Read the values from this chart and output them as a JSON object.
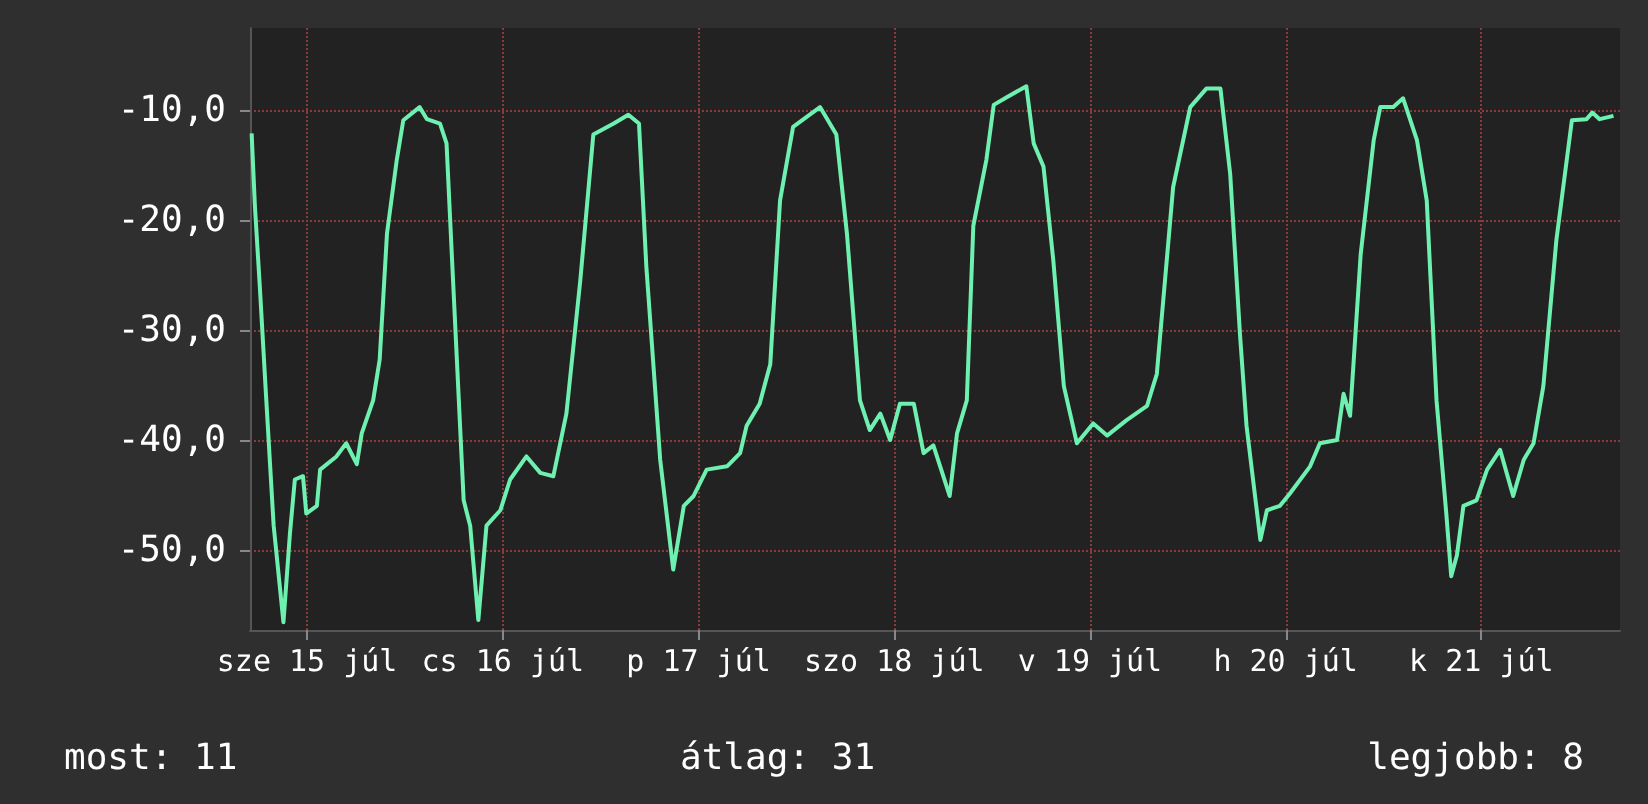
{
  "chart_data": {
    "type": "line",
    "annotations": [
      "most: 11",
      "átlag: 31",
      "legjobb: 8"
    ],
    "x": [
      "--07-14T17:12",
      "--07-14T17:36",
      "--07-14T18:12",
      "--07-14T19:00",
      "--07-14T19:54",
      "--07-14T21:06",
      "--07-14T21:54",
      "--07-14T22:30",
      "--07-14T23:30",
      "--07-14T23:54",
      "--07-15T01:12",
      "--07-15T01:36",
      "--07-15T03:36",
      "--07-15T04:48",
      "--07-15T06:06",
      "--07-15T06:42",
      "--07-15T08:06",
      "--07-15T08:54",
      "--07-15T09:48",
      "--07-15T11:00",
      "--07-15T11:48",
      "--07-15T13:48",
      "--07-15T14:42",
      "--07-15T16:18",
      "--07-15T17:06",
      "--07-15T17:54",
      "--07-15T19:12",
      "--07-15T20:00",
      "--07-15T21:00",
      "--07-15T22:00",
      "--07-15T23:42",
      "--07-16T00:54",
      "--07-16T02:54",
      "--07-16T04:36",
      "--07-16T06:12",
      "--07-16T07:48",
      "--07-16T09:30",
      "--07-16T11:06",
      "--07-16T13:36",
      "--07-16T15:24",
      "--07-16T16:42",
      "--07-16T17:36",
      "--07-16T19:18",
      "--07-16T20:54",
      "--07-16T22:12",
      "--07-16T23:24",
      "--07-17T01:00",
      "--07-17T03:30",
      "--07-17T05:06",
      "--07-17T05:54",
      "--07-17T07:30",
      "--07-17T08:48",
      "--07-17T10:00",
      "--07-17T11:36",
      "--07-17T14:54",
      "--07-17T16:54",
      "--07-17T18:12",
      "--07-17T19:48",
      "--07-17T21:00",
      "--07-17T22:18",
      "--07-17T23:30",
      "--07-18T00:42",
      "--07-18T02:24",
      "--07-18T03:36",
      "--07-18T04:48",
      "--07-18T06:48",
      "--07-18T07:42",
      "--07-18T08:54",
      "--07-18T09:42",
      "--07-18T11:18",
      "--07-18T12:12",
      "--07-18T13:48",
      "--07-18T16:12",
      "--07-18T17:06",
      "--07-18T18:18",
      "--07-18T19:30",
      "--07-18T20:48",
      "--07-18T22:24",
      "--07-19T00:24",
      "--07-19T02:06",
      "--07-19T04:30",
      "--07-19T07:00",
      "--07-19T08:12",
      "--07-19T10:12",
      "--07-19T12:18",
      "--07-19T14:18",
      "--07-19T16:00",
      "--07-19T17:12",
      "--07-19T18:24",
      "--07-19T19:12",
      "--07-19T20:54",
      "--07-19T21:42",
      "--07-19T23:18",
      "--07-20T00:30",
      "--07-20T03:00",
      "--07-20T04:12",
      "--07-20T06:18",
      "--07-20T07:06",
      "--07-20T07:54",
      "--07-20T09:12",
      "--07-20T10:48",
      "--07-20T11:36",
      "--07-20T13:12",
      "--07-20T14:24",
      "--07-20T16:06",
      "--07-20T17:18",
      "--07-20T18:30",
      "--07-20T19:42",
      "--07-20T20:18",
      "--07-20T21:00",
      "--07-20T21:48",
      "--07-20T23:24",
      "--07-21T00:42",
      "--07-21T02:18",
      "--07-21T03:54",
      "--07-21T05:12",
      "--07-21T06:24",
      "--07-21T07:36",
      "--07-21T09:12",
      "--07-21T11:06",
      "--07-21T12:54",
      "--07-21T13:36",
      "--07-21T14:30",
      "--07-21T16:12"
    ],
    "series": [
      {
        "color": "#6ef0b0",
        "values": [
          -12.1,
          -18.7,
          -26,
          -36.4,
          -47.8,
          -56.6,
          -48.5,
          -43.6,
          -43.3,
          -46.7,
          -46,
          -42.7,
          -41.5,
          -40.3,
          -42.2,
          -39.4,
          -36.4,
          -32.7,
          -21.2,
          -14.5,
          -10.9,
          -9.7,
          -10.8,
          -11.2,
          -13,
          -25.5,
          -45.5,
          -47.8,
          -56.4,
          -47.8,
          -46.4,
          -43.6,
          -41.5,
          -43,
          -43.3,
          -37.6,
          -25.5,
          -12.2,
          -11.2,
          -10.4,
          -11.2,
          -24.2,
          -41.8,
          -51.8,
          -46,
          -45.1,
          -42.7,
          -42.4,
          -41.2,
          -38.7,
          -36.7,
          -33.1,
          -18.2,
          -11.5,
          -9.7,
          -12.2,
          -21.2,
          -36.4,
          -39.1,
          -37.6,
          -40,
          -36.7,
          -36.7,
          -41.2,
          -40.5,
          -45.1,
          -39.4,
          -36.4,
          -20.5,
          -14.5,
          -9.5,
          -8.8,
          -7.8,
          -13,
          -15.1,
          -23.6,
          -35.1,
          -40.3,
          -38.5,
          -39.6,
          -38.2,
          -36.9,
          -34,
          -17,
          -9.7,
          -8,
          -8,
          -15.8,
          -30.4,
          -38.7,
          -49.1,
          -46.4,
          -46,
          -44.9,
          -42.4,
          -40.3,
          -40,
          -35.8,
          -37.8,
          -23.1,
          -12.7,
          -9.7,
          -9.7,
          -8.9,
          -12.7,
          -18.2,
          -36.4,
          -46.7,
          -52.4,
          -50.5,
          -46,
          -45.5,
          -42.7,
          -40.9,
          -45.1,
          -41.8,
          -40.3,
          -35.1,
          -21.8,
          -10.9,
          -10.8,
          -10.2,
          -10.8,
          -10.5
        ]
      }
    ],
    "xlim": [
      "--07-14T17:00",
      "--07-21T17:00"
    ],
    "xticks": [
      {
        "value": "--07-15",
        "label": "sze 15 júl"
      },
      {
        "value": "--07-16",
        "label": "cs 16 júl"
      },
      {
        "value": "--07-17",
        "label": "p 17 júl"
      },
      {
        "value": "--07-18",
        "label": "szo 18 júl"
      },
      {
        "value": "--07-19",
        "label": "v 19 júl"
      },
      {
        "value": "--07-20",
        "label": "h 20 júl"
      },
      {
        "value": "--07-21",
        "label": "k 21 júl"
      }
    ],
    "ylim": [
      -57.3,
      -2.5
    ],
    "yticks": [
      {
        "value": -10,
        "label": "-10,0"
      },
      {
        "value": -20,
        "label": "-20,0"
      },
      {
        "value": -30,
        "label": "-30,0"
      },
      {
        "value": -40,
        "label": "-40,0"
      },
      {
        "value": -50,
        "label": "-50,0"
      }
    ],
    "grid": true,
    "marker": "none",
    "line_style": "solid"
  }
}
